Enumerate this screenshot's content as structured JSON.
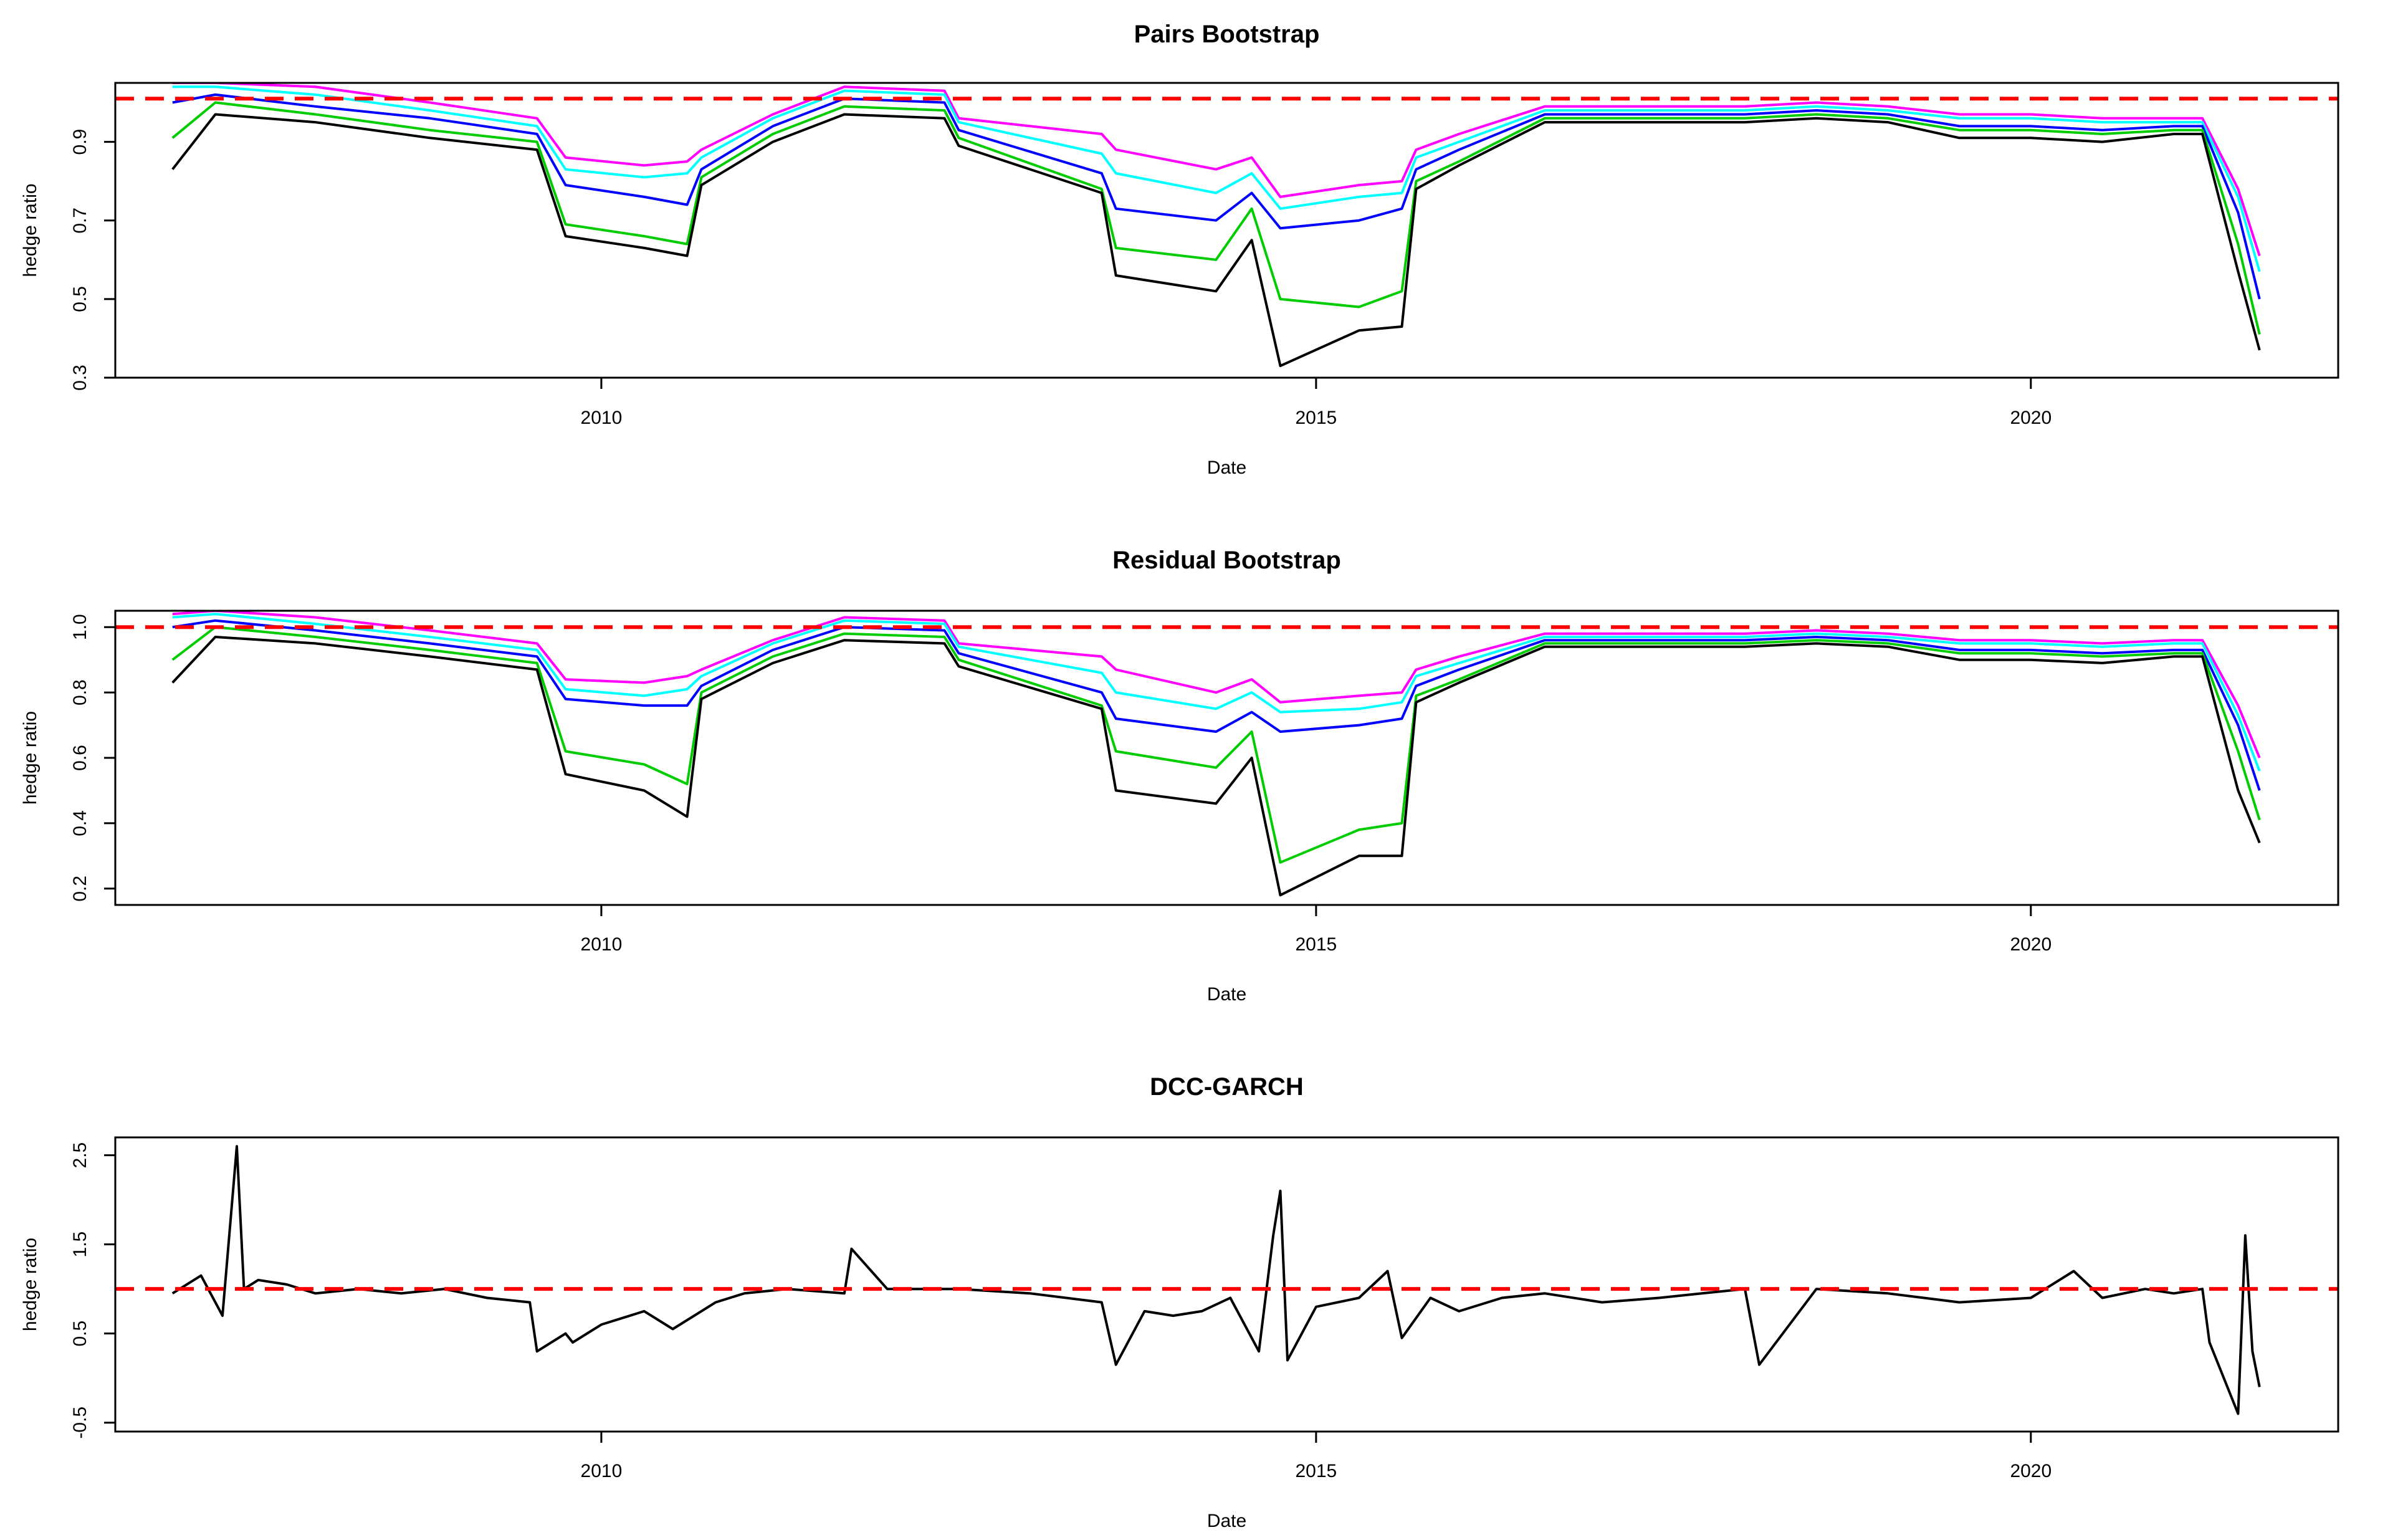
{
  "chart_data": [
    {
      "type": "line",
      "title": "Pairs Bootstrap",
      "xlabel": "Date",
      "ylabel": "hedge ratio",
      "xlim": [
        2006.6,
        2022.15
      ],
      "ylim": [
        0.3,
        1.05
      ],
      "xticks": [
        2010,
        2015,
        2020
      ],
      "xtick_labels": [
        "2010",
        "2015",
        "2020"
      ],
      "yticks": [
        0.3,
        0.5,
        0.7,
        0.9
      ],
      "ytick_labels": [
        "0.3",
        "0.5",
        "0.7",
        "0.9"
      ],
      "reference_line": {
        "y": 1.01,
        "color": "#ff0000",
        "style": "dashed"
      },
      "grid": false,
      "series_x": [
        2007.0,
        2007.3,
        2008.0,
        2008.8,
        2009.55,
        2009.75,
        2010.3,
        2010.6,
        2010.7,
        2011.2,
        2011.7,
        2012.4,
        2012.5,
        2013.5,
        2013.6,
        2014.3,
        2014.55,
        2014.75,
        2015.3,
        2015.6,
        2015.7,
        2016.0,
        2016.6,
        2017.5,
        2018.0,
        2018.5,
        2019.0,
        2019.5,
        2020.0,
        2020.5,
        2021.0,
        2021.2,
        2021.45,
        2021.6
      ],
      "series": [
        {
          "color": "#ff00ff",
          "values": [
            1.05,
            1.05,
            1.04,
            1.0,
            0.96,
            0.86,
            0.84,
            0.85,
            0.88,
            0.97,
            1.04,
            1.03,
            0.96,
            0.92,
            0.88,
            0.83,
            0.86,
            0.76,
            0.79,
            0.8,
            0.88,
            0.92,
            0.99,
            0.99,
            0.99,
            1.0,
            0.99,
            0.97,
            0.97,
            0.96,
            0.96,
            0.96,
            0.78,
            0.61
          ]
        },
        {
          "color": "#00ffff",
          "values": [
            1.04,
            1.04,
            1.02,
            0.98,
            0.94,
            0.83,
            0.81,
            0.82,
            0.86,
            0.96,
            1.03,
            1.02,
            0.95,
            0.87,
            0.82,
            0.77,
            0.82,
            0.73,
            0.76,
            0.77,
            0.86,
            0.9,
            0.98,
            0.98,
            0.98,
            0.99,
            0.98,
            0.96,
            0.96,
            0.95,
            0.95,
            0.95,
            0.76,
            0.57
          ]
        },
        {
          "color": "#0000ff",
          "values": [
            1.0,
            1.02,
            0.99,
            0.96,
            0.92,
            0.79,
            0.76,
            0.74,
            0.83,
            0.94,
            1.01,
            1.0,
            0.93,
            0.82,
            0.73,
            0.7,
            0.77,
            0.68,
            0.7,
            0.73,
            0.83,
            0.88,
            0.97,
            0.97,
            0.97,
            0.98,
            0.97,
            0.94,
            0.94,
            0.93,
            0.94,
            0.94,
            0.72,
            0.5
          ]
        },
        {
          "color": "#00cc00",
          "values": [
            0.91,
            1.0,
            0.97,
            0.93,
            0.9,
            0.69,
            0.66,
            0.64,
            0.81,
            0.92,
            0.99,
            0.98,
            0.91,
            0.78,
            0.63,
            0.6,
            0.73,
            0.5,
            0.48,
            0.52,
            0.8,
            0.85,
            0.96,
            0.96,
            0.96,
            0.97,
            0.96,
            0.93,
            0.93,
            0.92,
            0.93,
            0.93,
            0.64,
            0.41
          ]
        },
        {
          "color": "#000000",
          "values": [
            0.83,
            0.97,
            0.95,
            0.91,
            0.88,
            0.66,
            0.63,
            0.61,
            0.79,
            0.9,
            0.97,
            0.96,
            0.89,
            0.77,
            0.56,
            0.52,
            0.65,
            0.33,
            0.42,
            0.43,
            0.78,
            0.84,
            0.95,
            0.95,
            0.95,
            0.96,
            0.95,
            0.91,
            0.91,
            0.9,
            0.92,
            0.92,
            0.57,
            0.37
          ]
        }
      ]
    },
    {
      "type": "line",
      "title": "Residual Bootstrap",
      "xlabel": "Date",
      "ylabel": "hedge ratio",
      "xlim": [
        2006.6,
        2022.15
      ],
      "ylim": [
        0.15,
        1.05
      ],
      "xticks": [
        2010,
        2015,
        2020
      ],
      "xtick_labels": [
        "2010",
        "2015",
        "2020"
      ],
      "yticks": [
        0.2,
        0.4,
        0.6,
        0.8,
        1.0
      ],
      "ytick_labels": [
        "0.2",
        "0.4",
        "0.6",
        "0.8",
        "1.0"
      ],
      "reference_line": {
        "y": 1.0,
        "color": "#ff0000",
        "style": "dashed"
      },
      "grid": false,
      "series_x": [
        2007.0,
        2007.3,
        2008.0,
        2008.8,
        2009.55,
        2009.75,
        2010.3,
        2010.6,
        2010.7,
        2011.2,
        2011.7,
        2012.4,
        2012.5,
        2013.5,
        2013.6,
        2014.3,
        2014.55,
        2014.75,
        2015.3,
        2015.6,
        2015.7,
        2016.0,
        2016.6,
        2017.5,
        2018.0,
        2018.5,
        2019.0,
        2019.5,
        2020.0,
        2020.5,
        2021.0,
        2021.2,
        2021.45,
        2021.6
      ],
      "series": [
        {
          "color": "#ff00ff",
          "values": [
            1.04,
            1.05,
            1.03,
            0.99,
            0.95,
            0.84,
            0.83,
            0.85,
            0.87,
            0.96,
            1.03,
            1.02,
            0.95,
            0.91,
            0.87,
            0.8,
            0.84,
            0.77,
            0.79,
            0.8,
            0.87,
            0.91,
            0.98,
            0.98,
            0.98,
            0.99,
            0.98,
            0.96,
            0.96,
            0.95,
            0.96,
            0.96,
            0.76,
            0.6
          ]
        },
        {
          "color": "#00ffff",
          "values": [
            1.03,
            1.04,
            1.01,
            0.97,
            0.93,
            0.81,
            0.79,
            0.81,
            0.85,
            0.95,
            1.02,
            1.01,
            0.94,
            0.86,
            0.8,
            0.75,
            0.8,
            0.74,
            0.75,
            0.77,
            0.85,
            0.89,
            0.97,
            0.97,
            0.97,
            0.98,
            0.97,
            0.95,
            0.95,
            0.94,
            0.95,
            0.95,
            0.73,
            0.56
          ]
        },
        {
          "color": "#0000ff",
          "values": [
            1.0,
            1.02,
            0.99,
            0.95,
            0.91,
            0.78,
            0.76,
            0.76,
            0.82,
            0.93,
            1.0,
            0.99,
            0.92,
            0.8,
            0.72,
            0.68,
            0.74,
            0.68,
            0.7,
            0.72,
            0.82,
            0.87,
            0.96,
            0.96,
            0.96,
            0.97,
            0.96,
            0.93,
            0.93,
            0.92,
            0.93,
            0.93,
            0.7,
            0.5
          ]
        },
        {
          "color": "#00cc00",
          "values": [
            0.9,
            1.0,
            0.97,
            0.93,
            0.89,
            0.62,
            0.58,
            0.52,
            0.8,
            0.91,
            0.98,
            0.97,
            0.9,
            0.76,
            0.62,
            0.57,
            0.68,
            0.28,
            0.38,
            0.4,
            0.79,
            0.84,
            0.95,
            0.95,
            0.95,
            0.96,
            0.95,
            0.92,
            0.92,
            0.91,
            0.92,
            0.92,
            0.62,
            0.41
          ]
        },
        {
          "color": "#000000",
          "values": [
            0.83,
            0.97,
            0.95,
            0.91,
            0.87,
            0.55,
            0.5,
            0.42,
            0.78,
            0.89,
            0.96,
            0.95,
            0.88,
            0.75,
            0.5,
            0.46,
            0.6,
            0.18,
            0.3,
            0.3,
            0.77,
            0.83,
            0.94,
            0.94,
            0.94,
            0.95,
            0.94,
            0.9,
            0.9,
            0.89,
            0.91,
            0.91,
            0.5,
            0.34
          ]
        }
      ]
    },
    {
      "type": "line",
      "title": "DCC-GARCH",
      "xlabel": "Date",
      "ylabel": "hedge ratio",
      "xlim": [
        2006.6,
        2022.15
      ],
      "ylim": [
        -0.6,
        2.7
      ],
      "xticks": [
        2010,
        2015,
        2020
      ],
      "xtick_labels": [
        "2010",
        "2015",
        "2020"
      ],
      "yticks": [
        -0.5,
        0.5,
        1.5,
        2.5
      ],
      "ytick_labels": [
        "-0.5",
        "0.5",
        "1.5",
        "2.5"
      ],
      "reference_line": {
        "y": 1.0,
        "color": "#ff0000",
        "style": "dashed"
      },
      "grid": false,
      "series_x": [
        2007.0,
        2007.2,
        2007.35,
        2007.45,
        2007.5,
        2007.6,
        2007.8,
        2008.0,
        2008.3,
        2008.6,
        2008.9,
        2009.2,
        2009.5,
        2009.55,
        2009.75,
        2009.8,
        2010.0,
        2010.3,
        2010.5,
        2010.8,
        2011.0,
        2011.3,
        2011.7,
        2011.75,
        2012.0,
        2012.5,
        2013.0,
        2013.5,
        2013.6,
        2013.8,
        2014.0,
        2014.2,
        2014.4,
        2014.6,
        2014.7,
        2014.75,
        2014.8,
        2015.0,
        2015.3,
        2015.5,
        2015.6,
        2015.8,
        2016.0,
        2016.3,
        2016.6,
        2017.0,
        2017.4,
        2017.7,
        2018.0,
        2018.1,
        2018.5,
        2019.0,
        2019.5,
        2020.0,
        2020.3,
        2020.5,
        2020.8,
        2021.0,
        2021.2,
        2021.25,
        2021.35,
        2021.45,
        2021.5,
        2021.55,
        2021.6
      ],
      "series": [
        {
          "color": "#000000",
          "values": [
            0.95,
            1.15,
            0.7,
            2.6,
            1.0,
            1.1,
            1.05,
            0.95,
            1.0,
            0.95,
            1.0,
            0.9,
            0.85,
            0.3,
            0.5,
            0.4,
            0.6,
            0.75,
            0.55,
            0.85,
            0.95,
            1.0,
            0.95,
            1.45,
            1.0,
            1.0,
            0.95,
            0.85,
            0.15,
            0.75,
            0.7,
            0.75,
            0.9,
            0.3,
            1.6,
            2.1,
            0.2,
            0.8,
            0.9,
            1.2,
            0.45,
            0.9,
            0.75,
            0.9,
            0.95,
            0.85,
            0.9,
            0.95,
            1.0,
            0.15,
            1.0,
            0.95,
            0.85,
            0.9,
            1.2,
            0.9,
            1.0,
            0.95,
            1.0,
            0.4,
            0.0,
            -0.4,
            1.6,
            0.3,
            -0.1
          ]
        }
      ]
    }
  ]
}
